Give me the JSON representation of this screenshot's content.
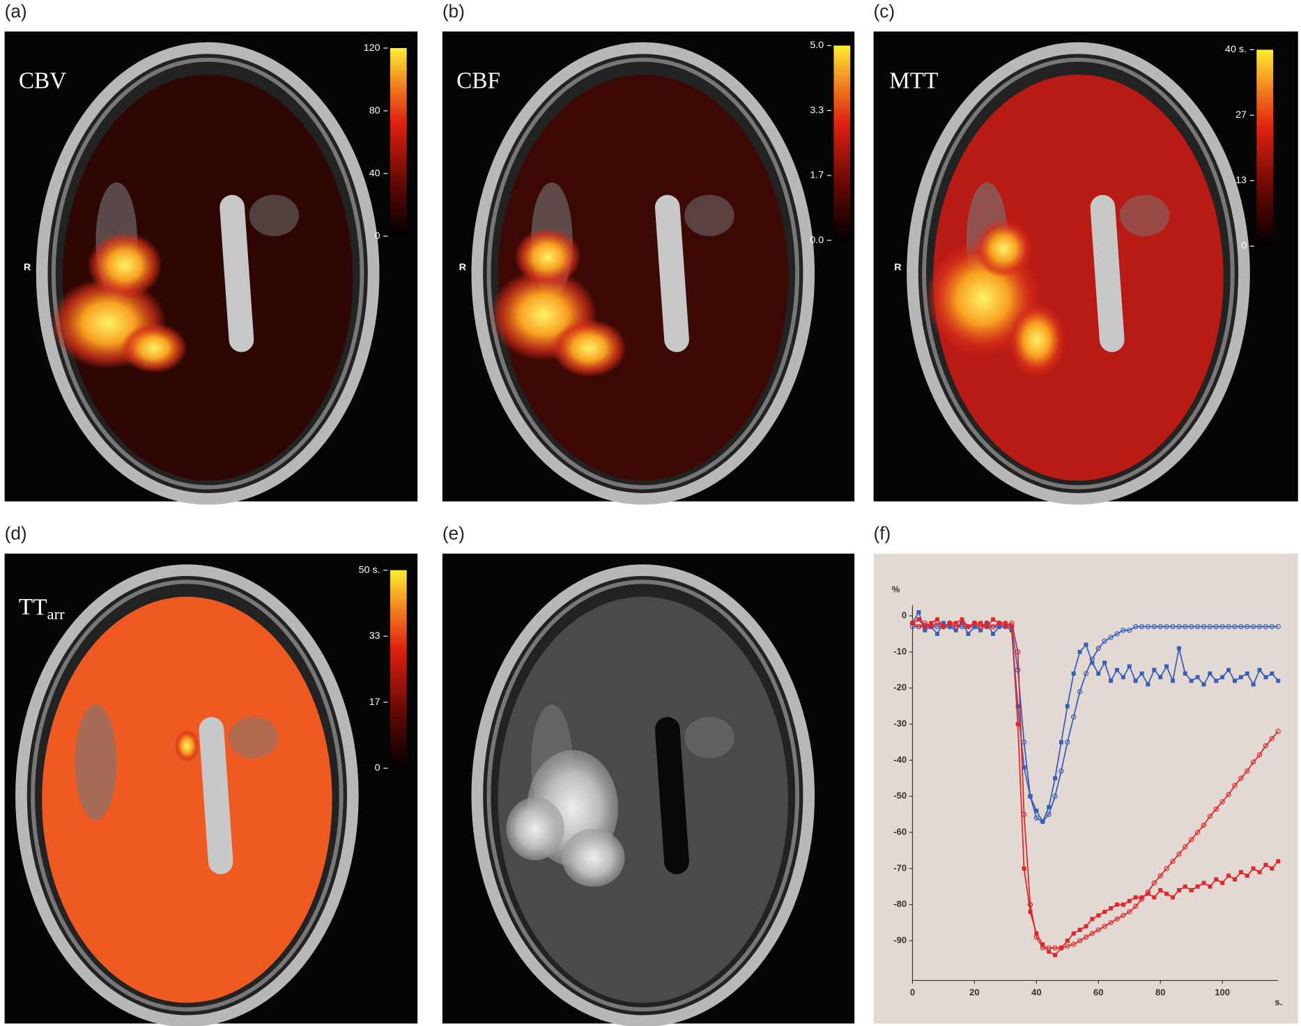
{
  "panels": [
    {
      "label": "(a)",
      "title": "CBV",
      "side": "R",
      "colorbar": [
        "120",
        "80",
        "40",
        "0"
      ]
    },
    {
      "label": "(b)",
      "title": "CBF",
      "side": "R",
      "colorbar": [
        "5.0",
        "3.3",
        "1.7",
        "0.0"
      ]
    },
    {
      "label": "(c)",
      "title": "MTT",
      "side": "R",
      "colorbar": [
        "40 s.",
        "27",
        "13",
        "0"
      ]
    },
    {
      "label": "(d)",
      "title": "T",
      "title_sub": "arr",
      "colorbar": [
        "50 s.",
        "33",
        "17",
        "0"
      ]
    },
    {
      "label": "(e)"
    },
    {
      "label": "(f)"
    }
  ],
  "chart_data": {
    "type": "line",
    "y_label": "%",
    "x_label": "s.",
    "x": [
      0,
      2,
      4,
      6,
      8,
      10,
      12,
      14,
      16,
      18,
      20,
      22,
      24,
      26,
      28,
      30,
      32,
      34,
      36,
      38,
      40,
      42,
      44,
      46,
      48,
      50,
      52,
      54,
      56,
      58,
      60,
      62,
      64,
      66,
      68,
      70,
      72,
      74,
      76,
      78,
      80,
      82,
      84,
      86,
      88,
      90,
      92,
      94,
      96,
      98,
      100,
      102,
      104,
      106,
      108,
      110,
      112,
      114,
      116,
      118
    ],
    "xlim": [
      0,
      118
    ],
    "xticks": [
      0,
      20,
      40,
      60,
      80,
      100
    ],
    "ylim": [
      -101,
      3
    ],
    "yticks": [
      0,
      -10,
      -20,
      -30,
      -40,
      -50,
      -60,
      -70,
      -80,
      -90
    ],
    "series": [
      {
        "color": "#3a5dbb",
        "marker": "circle",
        "values": [
          -3,
          -3,
          -3,
          -3,
          -3,
          -3,
          -3,
          -3,
          -3,
          -3,
          -3,
          -3,
          -3,
          -3,
          -3,
          -3,
          -3,
          -15,
          -35,
          -50,
          -56,
          -57,
          -55,
          -50,
          -43,
          -35,
          -28,
          -21,
          -16,
          -12,
          -9,
          -7,
          -6,
          -5,
          -4,
          -4,
          -3,
          -3,
          -3,
          -3,
          -3,
          -3,
          -3,
          -3,
          -3,
          -3,
          -3,
          -3,
          -3,
          -3,
          -3,
          -3,
          -3,
          -3,
          -3,
          -3,
          -3,
          -3,
          -3,
          -3
        ]
      },
      {
        "color": "#3a5dbb",
        "marker": "square",
        "values": [
          -2,
          1,
          -4,
          -3,
          -5,
          -2,
          -3,
          -4,
          -2,
          -5,
          -3,
          -4,
          -2,
          -5,
          -3,
          -3,
          -4,
          -25,
          -42,
          -50,
          -54,
          -57,
          -53,
          -45,
          -35,
          -25,
          -16,
          -10,
          -8,
          -13,
          -16,
          -13,
          -18,
          -15,
          -17,
          -14,
          -18,
          -16,
          -19,
          -15,
          -17,
          -14,
          -18,
          -9,
          -16,
          -18,
          -17,
          -19,
          -16,
          -18,
          -17,
          -15,
          -18,
          -17,
          -16,
          -19,
          -15,
          -17,
          -16,
          -18
        ]
      },
      {
        "color": "#e0262b",
        "marker": "circle",
        "values": [
          -2,
          -3,
          -2,
          -3,
          -2,
          -3,
          -2,
          -3,
          -2,
          -3,
          -2,
          -3,
          -2,
          -3,
          -2,
          -3,
          -2,
          -10,
          -55,
          -80,
          -89,
          -92,
          -92,
          -92,
          -92,
          -91.5,
          -91,
          -90,
          -89,
          -88,
          -87,
          -86,
          -85,
          -84,
          -83,
          -82,
          -80.5,
          -78.5,
          -76.5,
          -74,
          -72,
          -70,
          -68,
          -66,
          -64,
          -62,
          -60,
          -58,
          -55.5,
          -53.5,
          -51.5,
          -49.5,
          -47,
          -45,
          -43,
          -40.5,
          -38.5,
          -36,
          -34,
          -32
        ]
      },
      {
        "color": "#e0262b",
        "marker": "square",
        "values": [
          -2,
          -1,
          -3,
          -2,
          -1,
          -3,
          -2,
          -2,
          -1,
          -3,
          -2,
          -2,
          -3,
          -1,
          -2,
          -2,
          -3,
          -30,
          -70,
          -82,
          -88,
          -91,
          -93,
          -94,
          -92,
          -90,
          -88,
          -87,
          -86,
          -84,
          -83,
          -82,
          -81,
          -80,
          -80,
          -79,
          -78,
          -78,
          -77,
          -78,
          -76,
          -77,
          -78,
          -76,
          -75,
          -76,
          -75,
          -74,
          -75,
          -73,
          -74,
          -72,
          -73,
          -71,
          -72,
          -70,
          -71,
          -69,
          -70,
          -68
        ]
      }
    ]
  }
}
